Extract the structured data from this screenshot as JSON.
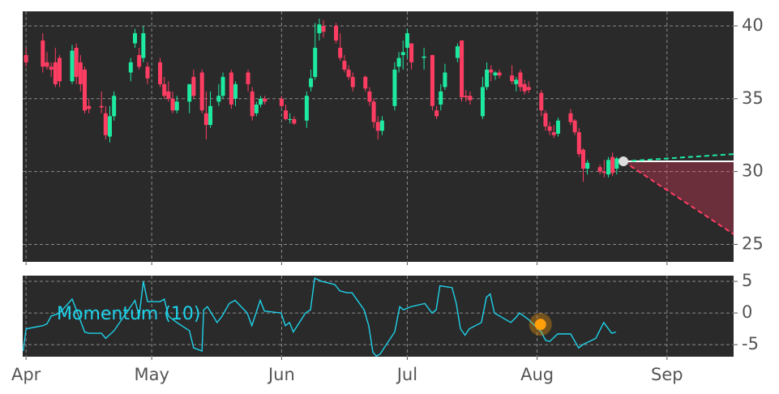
{
  "chart_data": [
    {
      "type": "candlestick",
      "xlim": [
        -0.8,
        168.9
      ],
      "xticks": [
        0,
        30,
        61,
        91,
        122,
        153
      ],
      "ylim": [
        23.8,
        41
      ],
      "yticks": [
        25,
        30,
        35,
        40
      ],
      "grid": true,
      "up_color": "#1de9a0",
      "down_color": "#ff3d63",
      "x": [
        0,
        4,
        5,
        6,
        7,
        8,
        11,
        12,
        13,
        14,
        15,
        18,
        19,
        20,
        21,
        25,
        26,
        27,
        28,
        29,
        32,
        33,
        34,
        35,
        36,
        39,
        40,
        42,
        43,
        44,
        46,
        47,
        49,
        50,
        53,
        54,
        55,
        56,
        57,
        61,
        62,
        63,
        64,
        67,
        68,
        69,
        70,
        71,
        74,
        75,
        76,
        77,
        78,
        81,
        82,
        83,
        84,
        85,
        88,
        89,
        90,
        91,
        92,
        95,
        97,
        98,
        99,
        100,
        103,
        104,
        105,
        106,
        109,
        110,
        111,
        112,
        113,
        116,
        117,
        118,
        119,
        120,
        123,
        124,
        125,
        126,
        127,
        130,
        131,
        132,
        133,
        134,
        137,
        138,
        139,
        140,
        141
      ],
      "open": [
        38,
        39,
        37.5,
        37.2,
        37.5,
        37.8,
        36.2,
        38.5,
        37.5,
        37,
        34.5,
        34.5,
        34,
        32.4,
        33.8,
        36.8,
        38.8,
        38,
        37.8,
        37.2,
        37.5,
        36,
        35.5,
        35,
        34.2,
        34.8,
        36.5,
        36.8,
        34,
        33.2,
        34.8,
        35.2,
        36.8,
        35,
        36.8,
        35.5,
        34,
        34.6,
        35,
        35,
        34.2,
        33.6,
        33.6,
        33.5,
        35.8,
        36.5,
        39.5,
        40,
        40,
        38.5,
        37.6,
        37,
        36.5,
        36.5,
        35.5,
        34.8,
        33.4,
        32.8,
        34.5,
        37.2,
        38,
        38.5,
        38.8,
        37.8,
        38,
        34.2,
        34.6,
        35.8,
        37.8,
        39,
        35.2,
        35.2,
        33.8,
        35.8,
        37,
        36.6,
        36.8,
        36.6,
        36,
        36.8,
        36,
        35.8,
        35.4,
        34,
        33.1,
        32.7,
        32.6,
        34,
        33.5,
        32.7,
        31.5,
        30.2,
        30.3,
        30,
        29.8,
        31,
        30.2
      ],
      "high": [
        38.5,
        39.5,
        38.2,
        37.5,
        38.5,
        38,
        38.7,
        38.8,
        38,
        37.2,
        35,
        35.5,
        34.5,
        34.5,
        35.5,
        37.8,
        39.8,
        38.5,
        40,
        37.5,
        37.8,
        36.5,
        36.2,
        35.5,
        35.2,
        36,
        37,
        37,
        35.5,
        35.5,
        36,
        36.8,
        37,
        36.2,
        37,
        35.8,
        34.8,
        35.2,
        35.2,
        35.2,
        34.6,
        34,
        33.8,
        35.5,
        37,
        40.2,
        40.5,
        40.4,
        40.2,
        39.5,
        38,
        37.3,
        36.8,
        36.6,
        35.8,
        35,
        33.8,
        33.8,
        37.5,
        38.2,
        39,
        39.8,
        38.8,
        38.5,
        38,
        34.5,
        36,
        37.4,
        38.8,
        39,
        35.6,
        35.5,
        36.5,
        37.5,
        37.3,
        36.9,
        37,
        37.3,
        36.5,
        37,
        36.3,
        36.2,
        35.6,
        34.2,
        33.4,
        33.2,
        33.7,
        34.3,
        33.6,
        33,
        31.6,
        30.8,
        30.5,
        30.8,
        31,
        31.3,
        31
      ],
      "low": [
        37.2,
        36.8,
        37,
        36.5,
        35.8,
        35.8,
        36,
        36,
        35.5,
        34,
        34,
        34,
        32.2,
        32,
        33.5,
        36.2,
        38.5,
        37,
        37.5,
        36,
        35.8,
        35,
        34.8,
        34,
        34,
        34,
        35,
        34,
        32.2,
        33,
        34.5,
        35,
        34.3,
        34.5,
        35.5,
        33.5,
        33.8,
        34.4,
        34.6,
        34.4,
        33.5,
        33.3,
        33.2,
        33,
        35.5,
        36.3,
        39,
        39.2,
        38.8,
        37.6,
        36.8,
        36.3,
        35.5,
        35.5,
        34.5,
        33,
        32.2,
        32.5,
        34.2,
        36.8,
        37,
        37.8,
        37,
        37,
        34.2,
        33.6,
        34.2,
        35.6,
        37.5,
        34.8,
        34.8,
        34.6,
        33.6,
        35.6,
        36.2,
        36.3,
        36.4,
        36,
        35.5,
        35.5,
        35.3,
        35.4,
        33.8,
        32.8,
        32.5,
        32.3,
        32.4,
        33.2,
        32.5,
        31,
        29.3,
        29.8,
        29.8,
        29.6,
        29.6,
        29.7,
        29.8
      ],
      "close": [
        37.5,
        37.2,
        37.2,
        37,
        36,
        36.2,
        38.3,
        36.5,
        36,
        34.2,
        34.3,
        34.4,
        32.5,
        33.8,
        35.2,
        37.5,
        39.5,
        37.2,
        39.5,
        36.4,
        36,
        35.2,
        35,
        34.2,
        34.8,
        36,
        35.2,
        34.2,
        33.2,
        34.5,
        35.2,
        36.5,
        34.6,
        36,
        36,
        33.8,
        34.6,
        35,
        34.8,
        34.5,
        33.6,
        33.6,
        33.3,
        35.2,
        36.4,
        38.5,
        40.1,
        39.6,
        39,
        37.8,
        37,
        36.5,
        35.8,
        35.7,
        34.8,
        33.4,
        32.8,
        33.5,
        37,
        37.8,
        38.2,
        39.5,
        37.5,
        37.9,
        34.5,
        33.8,
        35.5,
        36.8,
        38.6,
        35.1,
        35.1,
        34.9,
        35.8,
        37,
        36.8,
        36.8,
        36.6,
        36.2,
        36.3,
        35.8,
        35.5,
        35.6,
        34.2,
        33.1,
        32.8,
        32.5,
        33.5,
        33.4,
        32.7,
        31.2,
        30.2,
        30.6,
        30,
        29.9,
        30.8,
        29.9,
        30.9
      ],
      "forecast": {
        "x": [
          142.6,
          168.9
        ],
        "mid": [
          30.7,
          30.7
        ],
        "upper": [
          30.7,
          31.2
        ],
        "lower": [
          30.7,
          25.7
        ],
        "mid_color": "#ffffff",
        "upper_color": "#1de9a0",
        "lower_color": "#ff3d63",
        "point_color": "#dddddd"
      }
    },
    {
      "type": "line",
      "name": "Momentum (10)",
      "color": "#1ed2ea",
      "xlim": [
        -0.8,
        168.9
      ],
      "xticks": [
        {
          "value": 0,
          "label": "Apr"
        },
        {
          "value": 30,
          "label": "May"
        },
        {
          "value": 61,
          "label": "Jun"
        },
        {
          "value": 91,
          "label": "Jul"
        },
        {
          "value": 122,
          "label": "Aug"
        },
        {
          "value": 153,
          "label": "Sep"
        }
      ],
      "ylim": [
        -6.9,
        5.9
      ],
      "yticks": [
        5,
        0,
        -5
      ],
      "grid": true,
      "x": [
        -0.7,
        0,
        4,
        5,
        6,
        8,
        11,
        12,
        14,
        15,
        18,
        19,
        21,
        26,
        27,
        28,
        29,
        32,
        33,
        34,
        36,
        39,
        40,
        42,
        42.4,
        43.3,
        45.6,
        46.8,
        48.5,
        49.9,
        52.8,
        53.9,
        55.9,
        56.9,
        60.9,
        61.9,
        62.9,
        63.8,
        66.7,
        67.9,
        68.9,
        70.6,
        73.7,
        74.9,
        76.6,
        77.8,
        80.7,
        81.8,
        82.8,
        83.6,
        84.5,
        88,
        89.2,
        90.1,
        91.9,
        95.2,
        96.9,
        97.9,
        98.8,
        101.7,
        102.7,
        103.7,
        104.8,
        105.8,
        108.7,
        109.9,
        110.8,
        111.8,
        115.7,
        116.8,
        117.8,
        119.9,
        123,
        124,
        125,
        126.9,
        130,
        131.9,
        132.9,
        136,
        137.9,
        139.8,
        140.8
      ],
      "values": [
        -6,
        -2.5,
        -2,
        -1.7,
        -0.5,
        0,
        2.2,
        0.5,
        -3,
        -3.2,
        -3.2,
        -4,
        -2.8,
        2,
        -0.5,
        5,
        1.8,
        1.8,
        2.2,
        -0.5,
        -1.5,
        -2.8,
        -5.5,
        -6,
        0.5,
        1,
        -1.5,
        -0.5,
        1.5,
        2,
        0,
        -2,
        2,
        0.3,
        0,
        -2,
        -1.5,
        -3,
        0,
        0.5,
        5.5,
        5,
        4.5,
        3.5,
        3.2,
        3.2,
        0.5,
        -2,
        -6.2,
        -6.8,
        -6.5,
        -3,
        1,
        0.5,
        1,
        1.5,
        0,
        0.5,
        4.3,
        4,
        1.5,
        -2.5,
        -3.5,
        -2.5,
        -1.5,
        2.5,
        3,
        0,
        -1.5,
        -0.8,
        0,
        -1,
        -3,
        -4.3,
        -4.5,
        -3.3,
        -3.3,
        -5.5,
        -5,
        -4,
        -1.5,
        -3.2,
        -3
      ],
      "marker": {
        "x": 122.8,
        "value": -1.8,
        "color": "#ff9f0a"
      }
    }
  ]
}
